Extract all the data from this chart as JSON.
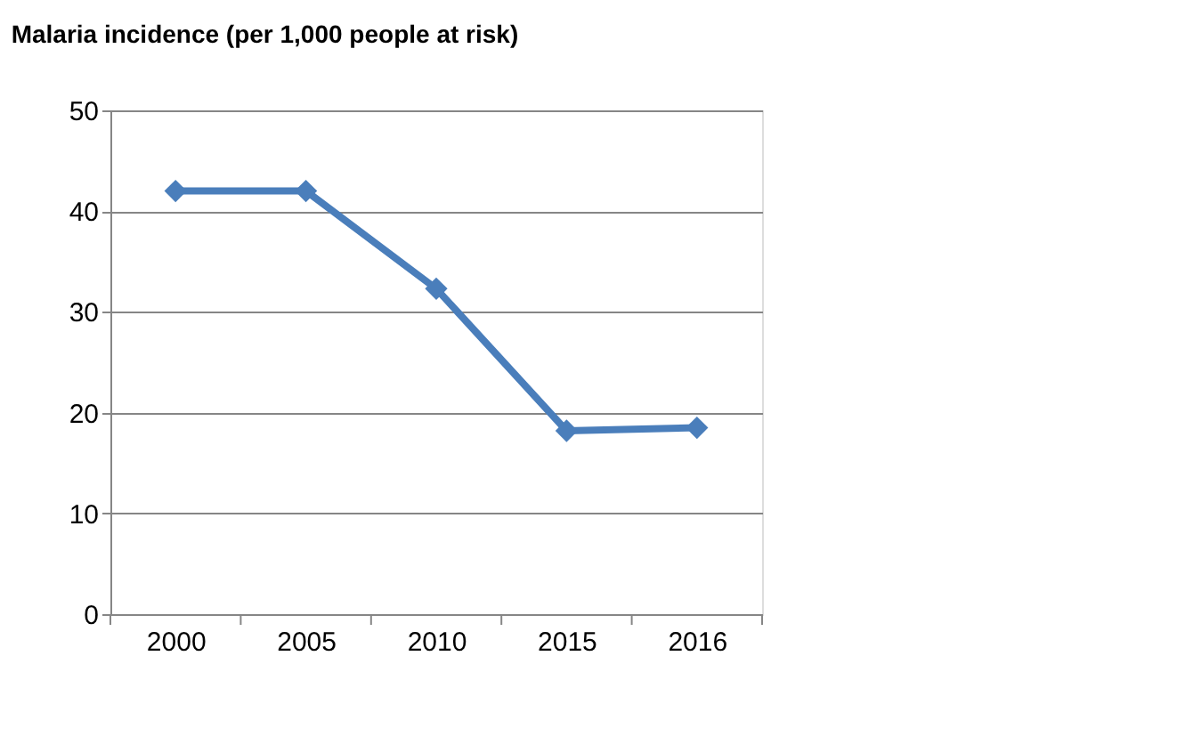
{
  "chart_data": {
    "type": "line",
    "title": "Malaria  incidence (per 1,000 people at risk)",
    "categories": [
      "2000",
      "2005",
      "2010",
      "2015",
      "2016"
    ],
    "series": [
      {
        "color": "#4a7ebb",
        "values": [
          42,
          42,
          32.3,
          18.2,
          18.5
        ]
      }
    ],
    "ylim": [
      0,
      50
    ],
    "yticks": [
      0,
      10,
      20,
      30,
      40,
      50
    ],
    "grid": "y",
    "legend": false,
    "marker": "diamond",
    "line_style": "solid"
  }
}
